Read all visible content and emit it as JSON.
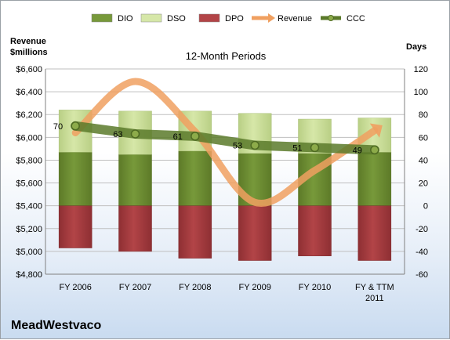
{
  "company": "MeadWestvaco",
  "chart_data": {
    "type": "bar",
    "title": "12-Month Periods",
    "left_axis": {
      "label_line1": "Revenue",
      "label_line2": "$millions",
      "min": 4800,
      "max": 6600,
      "step": 200,
      "ticks": [
        "$4,800",
        "$5,000",
        "$5,200",
        "$5,400",
        "$5,600",
        "$5,800",
        "$6,000",
        "$6,200",
        "$6,400",
        "$6,600"
      ]
    },
    "right_axis": {
      "label": "Days",
      "min": -60,
      "max": 120,
      "step": 20,
      "ticks": [
        "-60",
        "-40",
        "-20",
        "0",
        "20",
        "40",
        "60",
        "80",
        "100",
        "120"
      ]
    },
    "categories": [
      [
        "FY 2006"
      ],
      [
        "FY 2007"
      ],
      [
        "FY 2008"
      ],
      [
        "FY 2009"
      ],
      [
        "FY 2010"
      ],
      [
        "FY & TTM",
        "2011"
      ]
    ],
    "grid": true,
    "legend_position": "top",
    "series": [
      {
        "name": "DIO",
        "kind": "stacked-bar",
        "axis": "right",
        "color": "#77993a",
        "values": [
          47,
          45,
          48,
          46,
          46,
          47
        ]
      },
      {
        "name": "DSO",
        "kind": "stacked-bar",
        "axis": "right",
        "color": "#d6e7a8",
        "values": [
          37,
          38,
          35,
          35,
          30,
          30
        ]
      },
      {
        "name": "DPO",
        "kind": "negative-bar",
        "axis": "right",
        "color": "#b24447",
        "values": [
          -37,
          -40,
          -46,
          -48,
          -44,
          -48
        ]
      },
      {
        "name": "Revenue",
        "kind": "smooth-line-arrow",
        "axis": "left",
        "color": "#f0a060",
        "values": [
          6040,
          6490,
          6050,
          5430,
          5710,
          6060
        ]
      },
      {
        "name": "CCC",
        "kind": "line-markers",
        "axis": "right",
        "color": "#5b7a2a",
        "values": [
          70,
          63,
          61,
          53,
          51,
          49
        ]
      }
    ],
    "data_labels": {
      "series": "CCC",
      "values": [
        "70",
        "63",
        "61",
        "53",
        "51",
        "49"
      ]
    }
  }
}
